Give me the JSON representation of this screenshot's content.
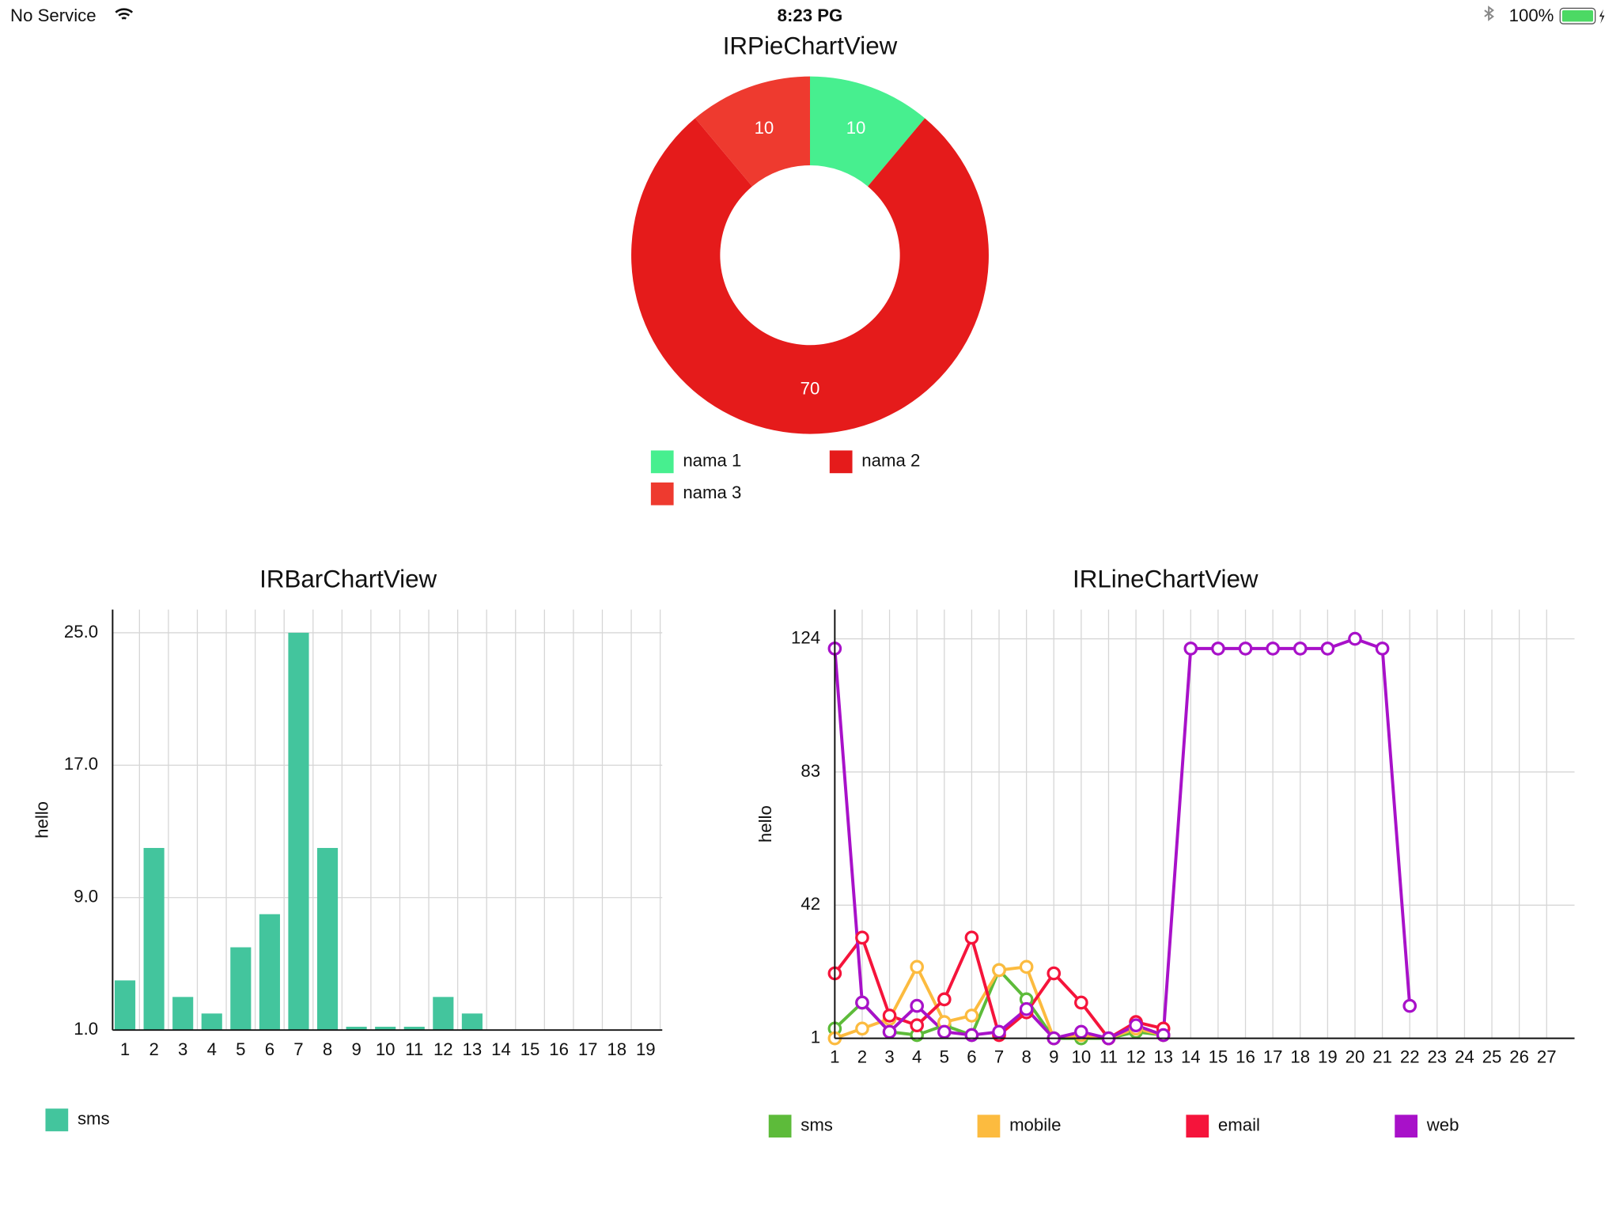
{
  "status_bar": {
    "carrier": "No Service",
    "time": "8:23 PG",
    "battery": "100%"
  },
  "chart_data": [
    {
      "type": "pie",
      "title": "IRPieChartView",
      "categories": [
        "nama 1",
        "nama 2",
        "nama 3"
      ],
      "values": [
        10,
        70,
        10
      ],
      "colors": [
        "#47ef8f",
        "#e51b1b",
        "#ee3a2f"
      ],
      "legend": "bottom"
    },
    {
      "type": "bar",
      "title": "IRBarChartView",
      "ylabel": "hello",
      "categories": [
        "1",
        "2",
        "3",
        "4",
        "5",
        "6",
        "7",
        "8",
        "9",
        "10",
        "11",
        "12",
        "13",
        "14",
        "15",
        "16",
        "17",
        "18",
        "19"
      ],
      "series": [
        {
          "name": "sms",
          "color": "#43c59d",
          "values": [
            4,
            12,
            3,
            2,
            6,
            8,
            25,
            12,
            1.2,
            1.2,
            1.2,
            3,
            2,
            null,
            null,
            null,
            null,
            null,
            null
          ]
        }
      ],
      "ylim": [
        1,
        26.4
      ],
      "yticks": [
        {
          "value": 1,
          "label": "1.0"
        },
        {
          "value": 9,
          "label": "9.0"
        },
        {
          "value": 17,
          "label": "17.0"
        },
        {
          "value": 25,
          "label": "25.0"
        }
      ],
      "grid": true,
      "legend": "bottom-left"
    },
    {
      "type": "line",
      "title": "IRLineChartView",
      "ylabel": "hello",
      "categories": [
        "1",
        "2",
        "3",
        "4",
        "5",
        "6",
        "7",
        "8",
        "9",
        "10",
        "11",
        "12",
        "13",
        "14",
        "15",
        "16",
        "17",
        "18",
        "19",
        "20",
        "21",
        "22",
        "23",
        "24",
        "25",
        "26",
        "27"
      ],
      "series": [
        {
          "name": "sms",
          "color": "#5dbb3a",
          "values": [
            4,
            12,
            3,
            2,
            5,
            2,
            22,
            13,
            1,
            1,
            1,
            3,
            2,
            null,
            null,
            null,
            null,
            null,
            null,
            null,
            null,
            null,
            null,
            null,
            null,
            null,
            null
          ]
        },
        {
          "name": "mobile",
          "color": "#fcbb3f",
          "values": [
            1,
            4,
            7,
            23,
            6,
            8,
            22,
            23,
            1,
            2,
            1,
            4,
            2,
            null,
            null,
            null,
            null,
            null,
            null,
            null,
            null,
            null,
            null,
            null,
            null,
            null,
            null
          ]
        },
        {
          "name": "email",
          "color": "#f5143b",
          "values": [
            21,
            32,
            8,
            5,
            13,
            32,
            2,
            9,
            21,
            12,
            1,
            6,
            4,
            null,
            null,
            null,
            null,
            null,
            null,
            null,
            null,
            null,
            null,
            null,
            null,
            null,
            null
          ]
        },
        {
          "name": "web",
          "color": "#a811c9",
          "values": [
            121,
            12,
            3,
            11,
            3,
            2,
            3,
            10,
            1,
            3,
            1,
            5,
            2,
            121,
            121,
            121,
            121,
            121,
            121,
            124,
            121,
            11,
            null,
            null,
            null,
            null,
            null
          ]
        }
      ],
      "ylim": [
        1,
        133
      ],
      "yticks": [
        1,
        42,
        83,
        124
      ],
      "grid": true,
      "legend": "bottom"
    }
  ]
}
